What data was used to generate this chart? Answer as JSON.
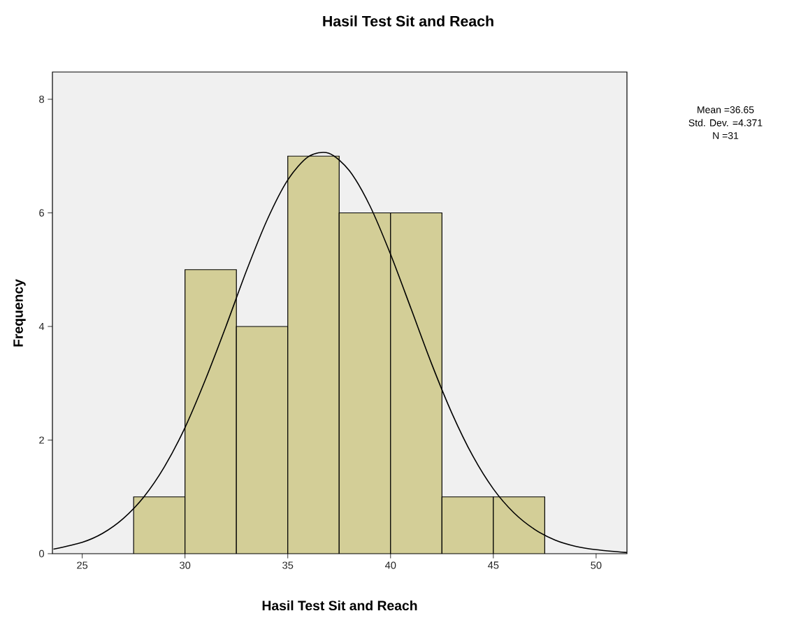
{
  "chart_data": {
    "type": "histogram",
    "title": "Hasil Test Sit and Reach",
    "xlabel": "Hasil Test Sit and Reach",
    "ylabel": "Frequency",
    "bins": [
      27.5,
      30,
      32.5,
      35,
      37.5,
      40,
      42.5,
      45,
      47.5
    ],
    "values": [
      1,
      5,
      4,
      7,
      6,
      6,
      1,
      1
    ],
    "color": "#d3ce97",
    "series": [
      {
        "type": "line",
        "color": "#000000",
        "x": [
          23.6,
          25,
          26,
          27,
          28,
          29,
          30,
          31,
          32,
          33,
          34,
          35,
          36,
          37,
          38,
          39,
          40,
          41,
          42,
          43,
          44,
          45,
          46,
          47,
          48,
          49,
          50,
          51.5
        ],
        "values": [
          0.08,
          0.2,
          0.36,
          0.62,
          1.0,
          1.53,
          2.22,
          3.07,
          4.01,
          4.99,
          5.88,
          6.58,
          6.99,
          7.05,
          6.74,
          6.12,
          5.27,
          4.31,
          3.34,
          2.46,
          1.72,
          1.14,
          0.72,
          0.43,
          0.24,
          0.13,
          0.07,
          0.02
        ]
      }
    ],
    "xlim": [
      23.55,
      51.5
    ],
    "ylim": [
      0,
      8.48
    ],
    "xticks": [
      25,
      30,
      35,
      40,
      45,
      50
    ],
    "yticks": [
      0,
      2,
      4,
      6,
      8
    ],
    "grid": false,
    "annotations": [
      "Mean =36.65",
      "Std. Dev. =4.371",
      "N =31"
    ]
  }
}
